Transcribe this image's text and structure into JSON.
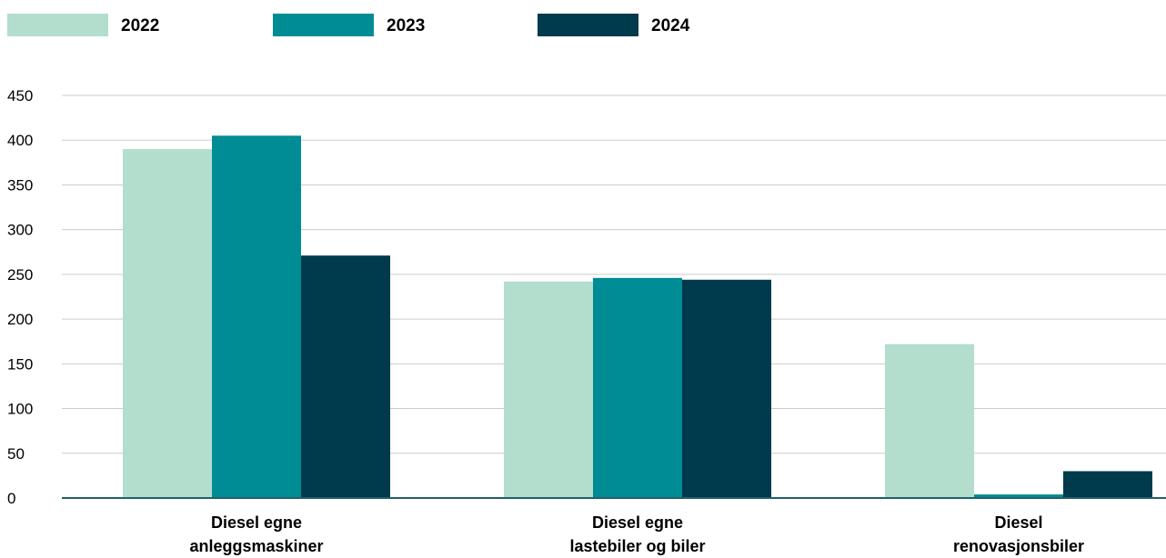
{
  "chart_data": {
    "type": "bar",
    "title": "",
    "xlabel": "",
    "ylabel": "",
    "ylim": [
      0,
      450
    ],
    "yticks": [
      0,
      50,
      100,
      150,
      200,
      250,
      300,
      350,
      400,
      450
    ],
    "grid": true,
    "legend_position": "top-left",
    "categories": [
      [
        "Diesel egne",
        "anleggsmaskiner"
      ],
      [
        "Diesel egne",
        "lastebiler og biler"
      ],
      [
        "Diesel",
        "renovasjonsbiler"
      ]
    ],
    "series": [
      {
        "name": "2022",
        "color": "#b3ddcd",
        "values": [
          390,
          242,
          172
        ]
      },
      {
        "name": "2023",
        "color": "#008c95",
        "values": [
          405,
          246,
          4
        ]
      },
      {
        "name": "2024",
        "color": "#003a4d",
        "values": [
          271,
          244,
          30
        ]
      }
    ],
    "axis_color": "#1f5f6d",
    "grid_color": "#cccccc"
  }
}
